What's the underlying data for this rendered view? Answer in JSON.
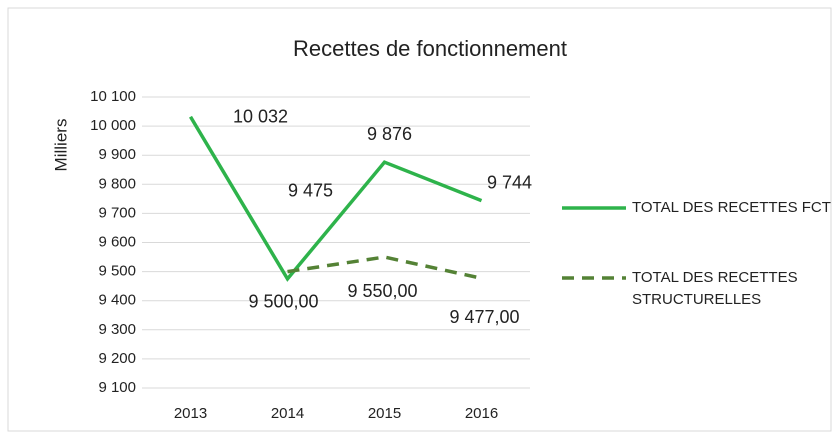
{
  "chart_data": {
    "type": "line",
    "title": "Recettes de fonctionnement",
    "y_label": "Milliers",
    "categories": [
      "2013",
      "2014",
      "2015",
      "2016"
    ],
    "series": [
      {
        "name": "TOTAL DES RECETTES FCT",
        "color": "#2eb34b",
        "dash": false,
        "values": [
          10032,
          9475,
          9876,
          9744
        ],
        "value_labels": [
          "10 032",
          "9 475",
          "9 876",
          "9 744"
        ]
      },
      {
        "name": "TOTAL DES RECETTES STRUCTURELLES",
        "color": "#548235",
        "dash": true,
        "values": [
          null,
          9500,
          9550,
          9477
        ],
        "value_labels": [
          null,
          "9 500,00",
          "9 550,00",
          "9 477,00"
        ]
      }
    ],
    "ylim": [
      9100,
      10100
    ],
    "yticks": [
      {
        "value": 9100,
        "label": "9 100"
      },
      {
        "value": 9200,
        "label": "9 200"
      },
      {
        "value": 9300,
        "label": "9 300"
      },
      {
        "value": 9400,
        "label": "9 400"
      },
      {
        "value": 9500,
        "label": "9 500"
      },
      {
        "value": 9600,
        "label": "9 600"
      },
      {
        "value": 9700,
        "label": "9 700"
      },
      {
        "value": 9800,
        "label": "9 800"
      },
      {
        "value": 9900,
        "label": "9 900"
      },
      {
        "value": 10000,
        "label": "10 000"
      },
      {
        "value": 10100,
        "label": "10 100"
      }
    ],
    "grid": true,
    "legend": "right"
  }
}
